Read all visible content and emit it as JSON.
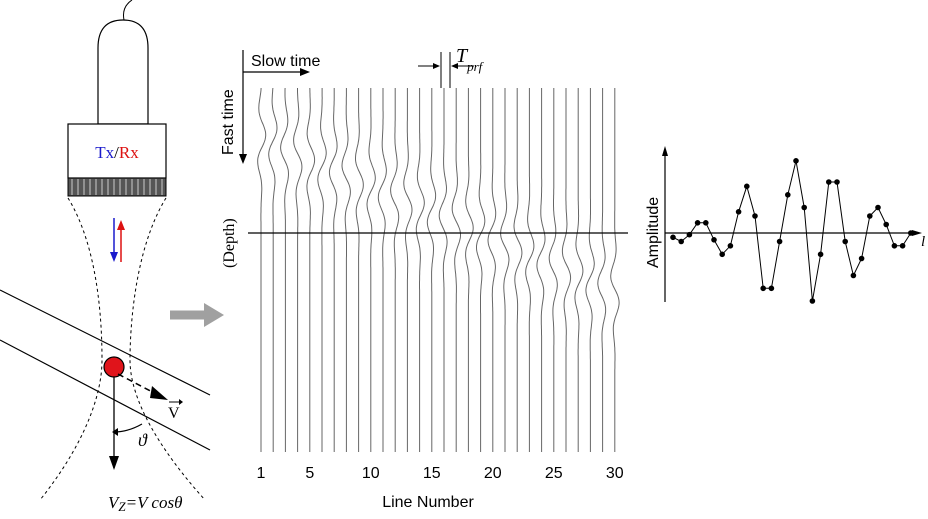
{
  "probe": {
    "tx": "Tx",
    "separator": "/",
    "rx": "Rx",
    "tx_color": "#1a1acc",
    "rx_color": "#dd1111"
  },
  "vessel": {
    "velocity_label": "V",
    "angle_label": "ϑ",
    "formula_lhs": "V",
    "formula_sub": "Z",
    "formula_rhs": "=V cos",
    "formula_theta": "θ",
    "scatterer_color": "#e0141b"
  },
  "matrix": {
    "slow_time_label": "Slow time",
    "fast_time_label": "Fast time",
    "depth_label": "(Depth)",
    "prf_main": "T",
    "prf_sub": "prf",
    "xlabel": "Line Number",
    "ticks": [
      "1",
      "5",
      "10",
      "15",
      "20",
      "25",
      "30"
    ],
    "tick_lines": [
      1,
      5,
      10,
      15,
      20,
      25,
      30
    ],
    "line_count": 30
  },
  "amplitude": {
    "ylabel": "Amplitude",
    "xaxis_label": "l",
    "values": [
      -0.05,
      -0.1,
      -0.02,
      0.12,
      0.12,
      -0.08,
      -0.25,
      -0.15,
      0.25,
      0.55,
      0.2,
      -0.65,
      -0.65,
      -0.1,
      0.45,
      0.85,
      0.3,
      -0.8,
      -0.25,
      0.6,
      0.6,
      -0.1,
      -0.5,
      -0.3,
      0.2,
      0.3,
      0.1,
      -0.15,
      -0.15,
      0.0
    ]
  },
  "arrow_color": "#a0a0a0"
}
